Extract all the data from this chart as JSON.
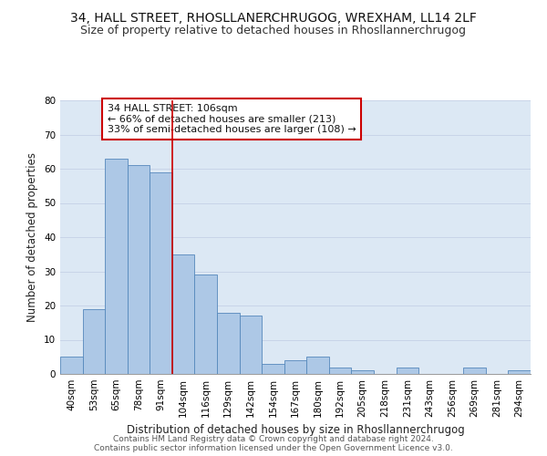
{
  "title": "34, HALL STREET, RHOSLLANERCHRUGOG, WREXHAM, LL14 2LF",
  "subtitle": "Size of property relative to detached houses in Rhosllannerchrugog",
  "xlabel": "Distribution of detached houses by size in Rhosllannerchrugog",
  "ylabel": "Number of detached properties",
  "bin_labels": [
    "40sqm",
    "53sqm",
    "65sqm",
    "78sqm",
    "91sqm",
    "104sqm",
    "116sqm",
    "129sqm",
    "142sqm",
    "154sqm",
    "167sqm",
    "180sqm",
    "192sqm",
    "205sqm",
    "218sqm",
    "231sqm",
    "243sqm",
    "256sqm",
    "269sqm",
    "281sqm",
    "294sqm"
  ],
  "bar_values": [
    5,
    19,
    63,
    61,
    59,
    35,
    29,
    18,
    17,
    3,
    4,
    5,
    2,
    1,
    0,
    2,
    0,
    0,
    2,
    0,
    1
  ],
  "bar_color": "#adc8e6",
  "bar_edge_color": "#5588bb",
  "vline_color": "#cc0000",
  "annotation_box_text": "34 HALL STREET: 106sqm\n← 66% of detached houses are smaller (213)\n33% of semi-detached houses are larger (108) →",
  "annotation_box_edge_color": "#cc0000",
  "annotation_box_face_color": "#ffffff",
  "ylim": [
    0,
    80
  ],
  "yticks": [
    0,
    10,
    20,
    30,
    40,
    50,
    60,
    70,
    80
  ],
  "grid_color": "#c8d4e8",
  "bg_color": "#dce8f4",
  "footer_line1": "Contains HM Land Registry data © Crown copyright and database right 2024.",
  "footer_line2": "Contains public sector information licensed under the Open Government Licence v3.0.",
  "title_fontsize": 10,
  "subtitle_fontsize": 9,
  "xlabel_fontsize": 8.5,
  "ylabel_fontsize": 8.5,
  "tick_fontsize": 7.5,
  "annotation_fontsize": 8,
  "footer_fontsize": 6.5
}
